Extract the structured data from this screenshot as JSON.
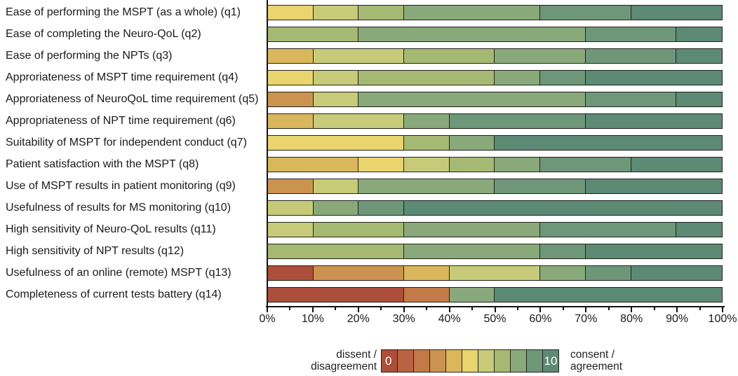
{
  "chart_data": {
    "type": "bar",
    "subtype": "horizontal-stacked-100pct",
    "title": "",
    "xlabel": "",
    "ylabel": "",
    "xlim": [
      0,
      100
    ],
    "x_tick_labels": [
      "0%",
      "10%",
      "20%",
      "30%",
      "40%",
      "50%",
      "60%",
      "70%",
      "80%",
      "90%",
      "100%"
    ],
    "minor_tick_step_pct": 5,
    "grid": "off",
    "rating_scale": {
      "min": 0,
      "max": 10
    },
    "palette_by_rating": [
      "#AC4E39",
      "#B96342",
      "#C37A48",
      "#CC9350",
      "#DAB75C",
      "#E9D46E",
      "#C7CB79",
      "#A6B973",
      "#89A97A",
      "#6E9779",
      "#5D8A75"
    ],
    "rows": [
      {
        "id": "q1",
        "label": "Ease of performing the MSPT (as a whole) (q1)",
        "segments": [
          {
            "rating": 5,
            "pct": 10
          },
          {
            "rating": 6,
            "pct": 10
          },
          {
            "rating": 7,
            "pct": 10
          },
          {
            "rating": 8,
            "pct": 30
          },
          {
            "rating": 9,
            "pct": 20
          },
          {
            "rating": 10,
            "pct": 20
          }
        ]
      },
      {
        "id": "q2",
        "label": "Ease of completing the Neuro-QoL (q2)",
        "segments": [
          {
            "rating": 7,
            "pct": 20
          },
          {
            "rating": 8,
            "pct": 50
          },
          {
            "rating": 9,
            "pct": 20
          },
          {
            "rating": 10,
            "pct": 10
          }
        ]
      },
      {
        "id": "q3",
        "label": "Ease of performing the NPTs (q3)",
        "segments": [
          {
            "rating": 4,
            "pct": 10
          },
          {
            "rating": 6,
            "pct": 20
          },
          {
            "rating": 7,
            "pct": 20
          },
          {
            "rating": 8,
            "pct": 20
          },
          {
            "rating": 9,
            "pct": 20
          },
          {
            "rating": 10,
            "pct": 10
          }
        ]
      },
      {
        "id": "q4",
        "label": "Approriateness of MSPT time requirement (q4)",
        "segments": [
          {
            "rating": 5,
            "pct": 10
          },
          {
            "rating": 6,
            "pct": 10
          },
          {
            "rating": 7,
            "pct": 30
          },
          {
            "rating": 8,
            "pct": 10
          },
          {
            "rating": 9,
            "pct": 10
          },
          {
            "rating": 10,
            "pct": 30
          }
        ]
      },
      {
        "id": "q5",
        "label": "Approriateness of NeuroQoL time requirement (q5)",
        "segments": [
          {
            "rating": 3,
            "pct": 10
          },
          {
            "rating": 6,
            "pct": 10
          },
          {
            "rating": 8,
            "pct": 50
          },
          {
            "rating": 9,
            "pct": 20
          },
          {
            "rating": 10,
            "pct": 10
          }
        ]
      },
      {
        "id": "q6",
        "label": "Appropriateness of NPT time requirement (q6)",
        "segments": [
          {
            "rating": 4,
            "pct": 10
          },
          {
            "rating": 6,
            "pct": 20
          },
          {
            "rating": 8,
            "pct": 10
          },
          {
            "rating": 9,
            "pct": 30
          },
          {
            "rating": 10,
            "pct": 30
          }
        ]
      },
      {
        "id": "q7",
        "label": "Suitability of MSPT for independent conduct (q7)",
        "segments": [
          {
            "rating": 5,
            "pct": 30
          },
          {
            "rating": 7,
            "pct": 10
          },
          {
            "rating": 8,
            "pct": 10
          },
          {
            "rating": 10,
            "pct": 50
          }
        ]
      },
      {
        "id": "q8",
        "label": "Patient satisfaction with the MSPT (q8)",
        "segments": [
          {
            "rating": 4,
            "pct": 20
          },
          {
            "rating": 5,
            "pct": 10
          },
          {
            "rating": 6,
            "pct": 10
          },
          {
            "rating": 7,
            "pct": 10
          },
          {
            "rating": 8,
            "pct": 10
          },
          {
            "rating": 9,
            "pct": 20
          },
          {
            "rating": 10,
            "pct": 20
          }
        ]
      },
      {
        "id": "q9",
        "label": "Use of MSPT results in patient monitoring (q9)",
        "segments": [
          {
            "rating": 3,
            "pct": 10
          },
          {
            "rating": 6,
            "pct": 10
          },
          {
            "rating": 8,
            "pct": 30
          },
          {
            "rating": 9,
            "pct": 20
          },
          {
            "rating": 10,
            "pct": 30
          }
        ]
      },
      {
        "id": "q10",
        "label": "Usefulness of results for MS monitoring (q10)",
        "segments": [
          {
            "rating": 6,
            "pct": 10
          },
          {
            "rating": 8,
            "pct": 10
          },
          {
            "rating": 9,
            "pct": 10
          },
          {
            "rating": 10,
            "pct": 70
          }
        ]
      },
      {
        "id": "q11",
        "label": "High sensitivity of Neuro-QoL results (q11)",
        "segments": [
          {
            "rating": 6,
            "pct": 10
          },
          {
            "rating": 7,
            "pct": 20
          },
          {
            "rating": 8,
            "pct": 30
          },
          {
            "rating": 9,
            "pct": 30
          },
          {
            "rating": 10,
            "pct": 10
          }
        ]
      },
      {
        "id": "q12",
        "label": "High sensitivity of NPT results (q12)",
        "segments": [
          {
            "rating": 7,
            "pct": 30
          },
          {
            "rating": 8,
            "pct": 30
          },
          {
            "rating": 9,
            "pct": 10
          },
          {
            "rating": 10,
            "pct": 30
          }
        ]
      },
      {
        "id": "q13",
        "label": "Usefulness of an online (remote) MSPT (q13)",
        "segments": [
          {
            "rating": 0,
            "pct": 10
          },
          {
            "rating": 3,
            "pct": 20
          },
          {
            "rating": 4,
            "pct": 10
          },
          {
            "rating": 6,
            "pct": 20
          },
          {
            "rating": 8,
            "pct": 10
          },
          {
            "rating": 9,
            "pct": 10
          },
          {
            "rating": 10,
            "pct": 20
          }
        ]
      },
      {
        "id": "q14",
        "label": "Completeness of current tests battery (q14)",
        "segments": [
          {
            "rating": 0,
            "pct": 30
          },
          {
            "rating": 2,
            "pct": 10
          },
          {
            "rating": 8,
            "pct": 10
          },
          {
            "rating": 10,
            "pct": 50
          }
        ]
      }
    ],
    "legend": {
      "left_line1": "dissent /",
      "left_line2": "disagreement",
      "right_line1": "consent /",
      "right_line2": "agreement",
      "scale_min_label": "0",
      "scale_max_label": "10",
      "legend_position": "bottom-center"
    }
  }
}
